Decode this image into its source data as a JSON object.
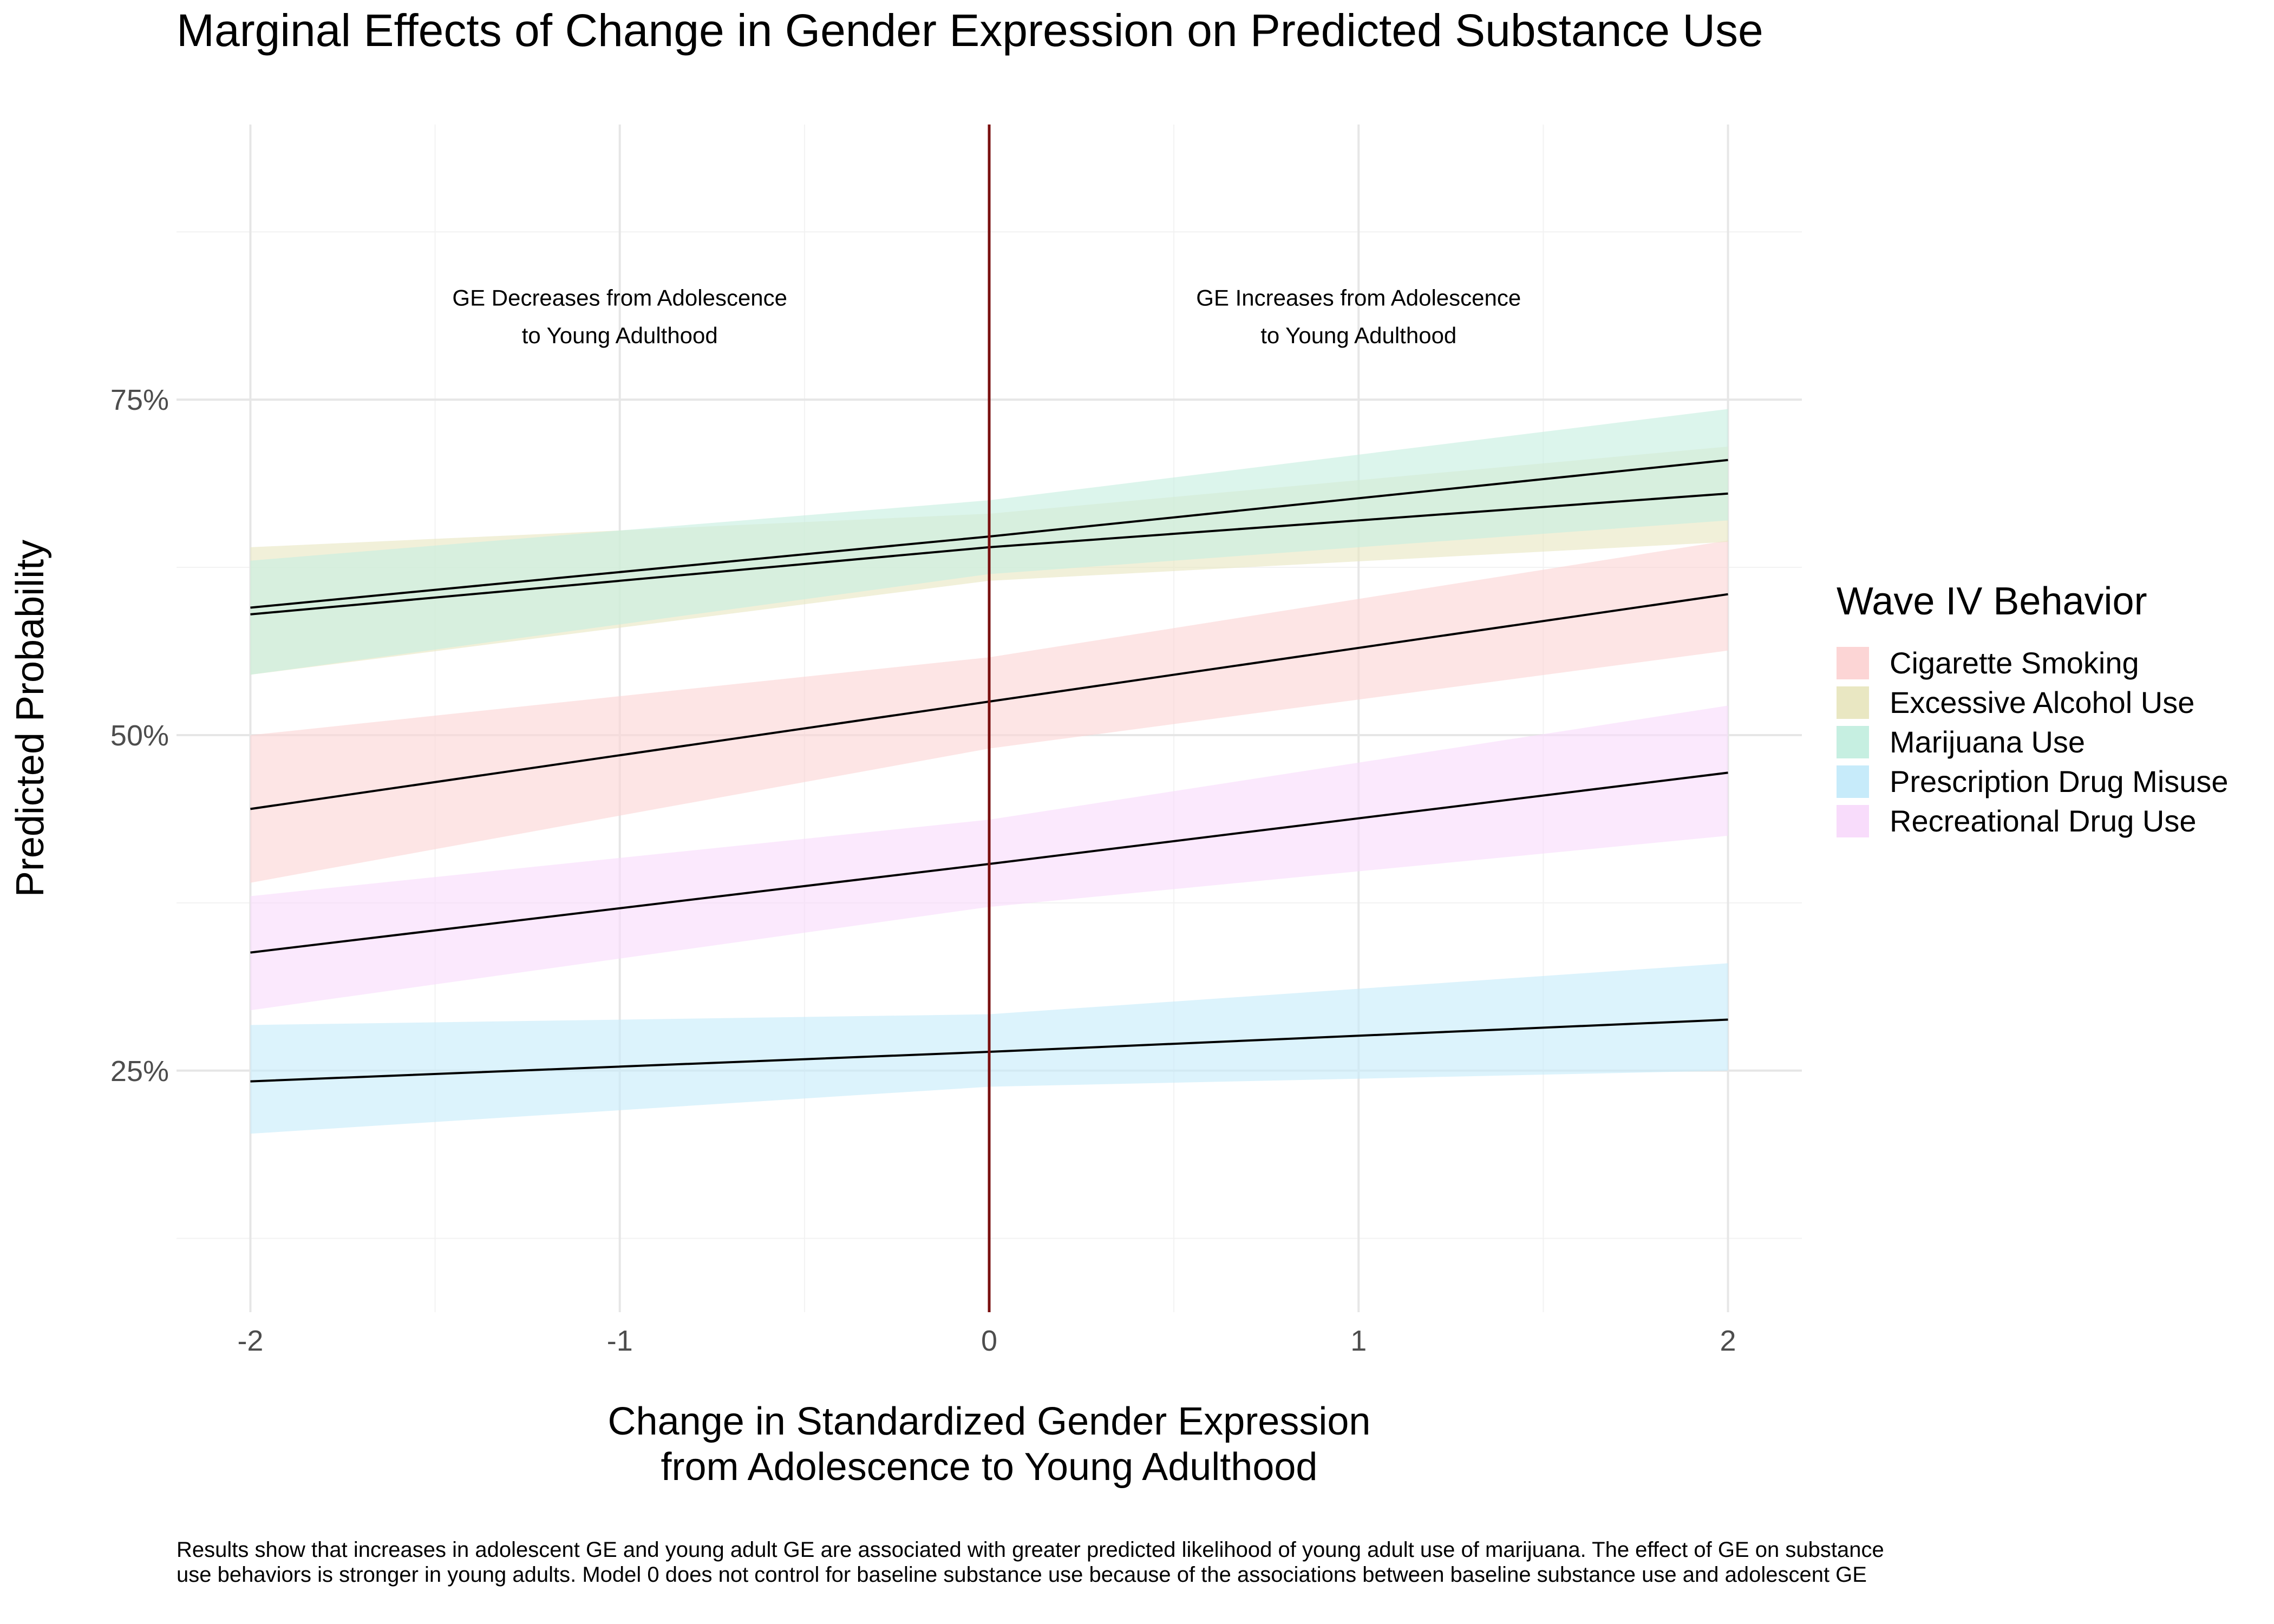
{
  "chart_data": {
    "type": "line",
    "title": "Marginal Effects of Change in Gender Expression on Predicted Substance Use",
    "xlabel": "Change in Standardized Gender Expression\nfrom Adolescence to Young Adulthood",
    "ylabel": "Predicted Probability",
    "x_ticks": [
      -2,
      -1,
      0,
      1,
      2
    ],
    "y_ticks": [
      0.25,
      0.5,
      0.75
    ],
    "y_tick_labels": [
      "25%",
      "50%",
      "75%"
    ],
    "xlim": [
      -2.2,
      2.2
    ],
    "ylim": [
      0.07,
      0.955
    ],
    "grid": true,
    "vline": {
      "x": 0,
      "color": "#7a1010"
    },
    "legend": {
      "title": "Wave IV Behavior",
      "position": "right"
    },
    "annotations": [
      {
        "lines": [
          "GE Decreases from Adolescence",
          "to Young Adulthood"
        ],
        "x": -1.0,
        "y": [
          0.82,
          0.792
        ]
      },
      {
        "lines": [
          "GE Increases from Adolescence",
          "to Young Adulthood"
        ],
        "x": 1.0,
        "y": [
          0.82,
          0.792
        ]
      }
    ],
    "series": [
      {
        "name": "Cigarette Smoking",
        "color": "#fcd5d5",
        "x": [
          -2,
          0,
          2
        ],
        "y": [
          0.445,
          0.525,
          0.605
        ],
        "lower": [
          0.39,
          0.49,
          0.563
        ],
        "upper": [
          0.5,
          0.558,
          0.645
        ]
      },
      {
        "name": "Excessive Alcohol Use",
        "color": "#e9e7c2",
        "x": [
          -2,
          0,
          2
        ],
        "y": [
          0.59,
          0.64,
          0.68
        ],
        "lower": [
          0.545,
          0.615,
          0.644
        ],
        "upper": [
          0.64,
          0.665,
          0.715
        ]
      },
      {
        "name": "Marijuana Use",
        "color": "#c6efe1",
        "x": [
          -2,
          0,
          2
        ],
        "y": [
          0.595,
          0.648,
          0.705
        ],
        "lower": [
          0.545,
          0.62,
          0.66
        ],
        "upper": [
          0.63,
          0.675,
          0.743
        ]
      },
      {
        "name": "Prescription Drug Misuse",
        "color": "#c7ebfa",
        "x": [
          -2,
          0,
          2
        ],
        "y": [
          0.242,
          0.264,
          0.288
        ],
        "lower": [
          0.203,
          0.238,
          0.25
        ],
        "upper": [
          0.284,
          0.292,
          0.33
        ]
      },
      {
        "name": "Recreational Drug Use",
        "color": "#f8dcfb",
        "x": [
          -2,
          0,
          2
        ],
        "y": [
          0.338,
          0.404,
          0.472
        ],
        "lower": [
          0.295,
          0.372,
          0.425
        ],
        "upper": [
          0.38,
          0.437,
          0.522
        ]
      }
    ],
    "caption": "Results show that increases in adolescent GE and young adult GE are associated with greater predicted likelihood of young adult use of marijuana. The effect of GE on substance use behaviors is stronger in young adults. Model 0 does not control for baseline substance use because of the associations between baseline substance use and adolescent GE"
  }
}
